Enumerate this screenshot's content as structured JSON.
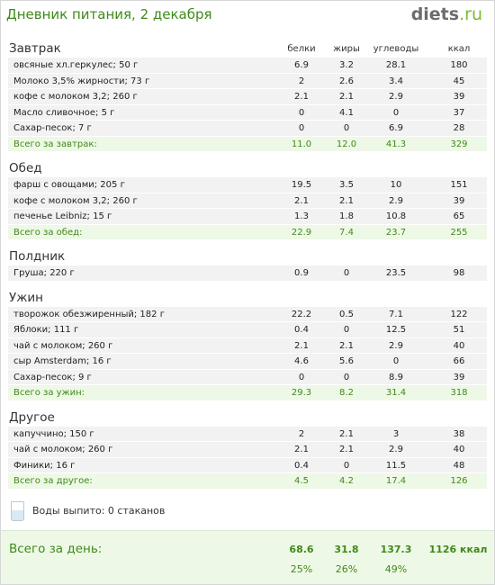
{
  "header": {
    "title": "Дневник питания, 2 декабря",
    "logo_main": "diets",
    "logo_suffix": ".ru"
  },
  "columns": {
    "protein": "белки",
    "fat": "жиры",
    "carbs": "углеводы",
    "kcal": "ккал"
  },
  "sections": [
    {
      "title": "Завтрак",
      "show_columns": true,
      "items": [
        {
          "name": "овсяные хл.геркулес; 50 г",
          "protein": "6.9",
          "fat": "3.2",
          "carbs": "28.1",
          "kcal": "180"
        },
        {
          "name": "Молоко 3,5% жирности; 73 г",
          "protein": "2",
          "fat": "2.6",
          "carbs": "3.4",
          "kcal": "45"
        },
        {
          "name": "кофе с молоком 3,2; 260 г",
          "protein": "2.1",
          "fat": "2.1",
          "carbs": "2.9",
          "kcal": "39"
        },
        {
          "name": "Масло сливочное; 5 г",
          "protein": "0",
          "fat": "4.1",
          "carbs": "0",
          "kcal": "37"
        },
        {
          "name": "Сахар-песок; 7 г",
          "protein": "0",
          "fat": "0",
          "carbs": "6.9",
          "kcal": "28"
        }
      ],
      "total": {
        "label": "Всего за завтрак:",
        "protein": "11.0",
        "fat": "12.0",
        "carbs": "41.3",
        "kcal": "329"
      }
    },
    {
      "title": "Обед",
      "show_columns": false,
      "items": [
        {
          "name": "фарш с овощами; 205 г",
          "protein": "19.5",
          "fat": "3.5",
          "carbs": "10",
          "kcal": "151"
        },
        {
          "name": "кофе с молоком 3,2; 260 г",
          "protein": "2.1",
          "fat": "2.1",
          "carbs": "2.9",
          "kcal": "39"
        },
        {
          "name": "печенье  Leibniz; 15 г",
          "protein": "1.3",
          "fat": "1.8",
          "carbs": "10.8",
          "kcal": "65"
        }
      ],
      "total": {
        "label": "Всего за обед:",
        "protein": "22.9",
        "fat": "7.4",
        "carbs": "23.7",
        "kcal": "255"
      }
    },
    {
      "title": "Полдник",
      "show_columns": false,
      "items": [
        {
          "name": "Груша; 220 г",
          "protein": "0.9",
          "fat": "0",
          "carbs": "23.5",
          "kcal": "98"
        }
      ],
      "total": null
    },
    {
      "title": "Ужин",
      "show_columns": false,
      "items": [
        {
          "name": "творожок обезжиренный; 182 г",
          "protein": "22.2",
          "fat": "0.5",
          "carbs": "7.1",
          "kcal": "122"
        },
        {
          "name": "Яблоки; 111 г",
          "protein": "0.4",
          "fat": "0",
          "carbs": "12.5",
          "kcal": "51"
        },
        {
          "name": "чай с молоком; 260 г",
          "protein": "2.1",
          "fat": "2.1",
          "carbs": "2.9",
          "kcal": "40"
        },
        {
          "name": "сыр Amsterdam; 16 г",
          "protein": "4.6",
          "fat": "5.6",
          "carbs": "0",
          "kcal": "66"
        },
        {
          "name": "Сахар-песок; 9 г",
          "protein": "0",
          "fat": "0",
          "carbs": "8.9",
          "kcal": "39"
        }
      ],
      "total": {
        "label": "Всего за ужин:",
        "protein": "29.3",
        "fat": "8.2",
        "carbs": "31.4",
        "kcal": "318"
      }
    },
    {
      "title": "Другое",
      "show_columns": false,
      "items": [
        {
          "name": "капуччино; 150 г",
          "protein": "2",
          "fat": "2.1",
          "carbs": "3",
          "kcal": "38"
        },
        {
          "name": "чай с молоком; 260 г",
          "protein": "2.1",
          "fat": "2.1",
          "carbs": "2.9",
          "kcal": "40"
        },
        {
          "name": "Финики; 16 г",
          "protein": "0.4",
          "fat": "0",
          "carbs": "11.5",
          "kcal": "48"
        }
      ],
      "total": {
        "label": "Всего за другое:",
        "protein": "4.5",
        "fat": "4.2",
        "carbs": "17.4",
        "kcal": "126"
      }
    }
  ],
  "water": {
    "text": "Воды выпито: 0 стаканов",
    "icon": "glass-icon"
  },
  "day_total": {
    "label": "Всего за день:",
    "protein": "68.6",
    "fat": "31.8",
    "carbs": "137.3",
    "kcal": "1126 ккал",
    "protein_pct": "25%",
    "fat_pct": "26%",
    "carbs_pct": "49%"
  },
  "colors": {
    "accent_green": "#3f8a1a",
    "row_bg": "#f2f2f2",
    "total_bg": "#eef8e6"
  }
}
